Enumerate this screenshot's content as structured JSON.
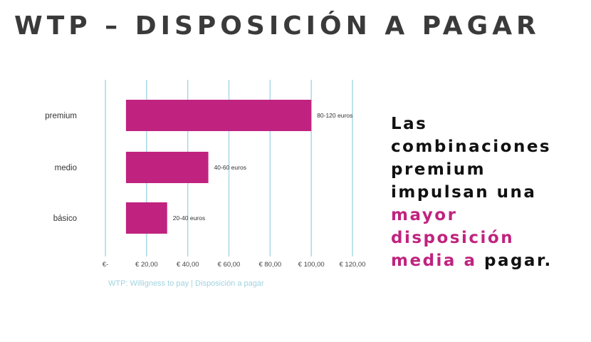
{
  "page": {
    "title": "WTP – DISPOSICIÓN A PAGAR"
  },
  "side_text": {
    "part1": "Las combinaciones premium impulsan una ",
    "highlight": "mayor disposición media a",
    "part2": " pagar.",
    "highlight_color": "#c0237f"
  },
  "chart_data": {
    "type": "bar",
    "orientation": "horizontal",
    "categories": [
      "premium",
      "medio",
      "básico"
    ],
    "series": [
      {
        "ranges": [
          [
            10,
            100
          ],
          [
            10,
            50
          ],
          [
            10,
            30
          ]
        ],
        "labels": [
          "80-120 euros",
          "40-60 euros",
          "20-40 euros"
        ]
      }
    ],
    "x_ticks": [
      0,
      20,
      40,
      60,
      80,
      100,
      120
    ],
    "x_tick_labels": [
      "€-",
      "€ 20,00",
      "€ 40,00",
      "€ 60,00",
      "€ 80,00",
      "€ 100,00",
      "€ 120,00"
    ],
    "xlim": [
      0,
      120
    ],
    "grid": true,
    "bar_color": "#c0237f",
    "grid_color": "#a8d8e6",
    "caption": "WTP: Willigness to pay | Disposición a pagar"
  }
}
